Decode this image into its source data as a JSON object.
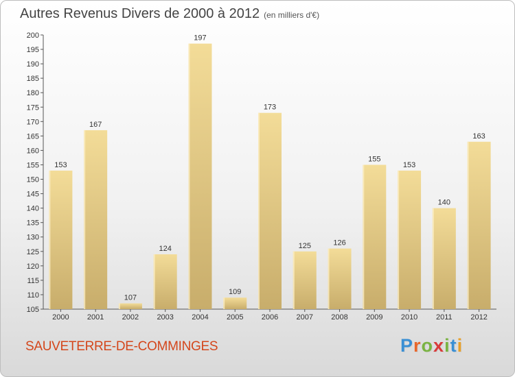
{
  "chart": {
    "title": "Autres Revenus Divers de 2000 à 2012",
    "subtitle": "(en milliers d'€)",
    "location": "SAUVETERRE-DE-COMMINGES",
    "logo_text": "Proxiti"
  },
  "colors": {
    "bar_light": "#f3dc98",
    "bar_dark": "#c8ad6b",
    "city": "#d4461b",
    "logo": [
      "#3a8fd4",
      "#e8662a",
      "#7ab342",
      "#d93a3a",
      "#7ab342",
      "#3a8fd4",
      "#e8a02a"
    ]
  },
  "chart_data": {
    "type": "bar",
    "title": "Autres Revenus Divers de 2000 à 2012",
    "subtitle": "(en milliers d'€)",
    "categories": [
      "2000",
      "2001",
      "2002",
      "2003",
      "2004",
      "2005",
      "2006",
      "2007",
      "2008",
      "2009",
      "2010",
      "2011",
      "2012"
    ],
    "values": [
      153,
      167,
      107,
      124,
      197,
      109,
      173,
      125,
      126,
      155,
      153,
      140,
      163
    ],
    "ylim": [
      105,
      200
    ],
    "ytick_step": 5,
    "grid": false,
    "legend": "none",
    "xlabel": "",
    "ylabel": ""
  }
}
